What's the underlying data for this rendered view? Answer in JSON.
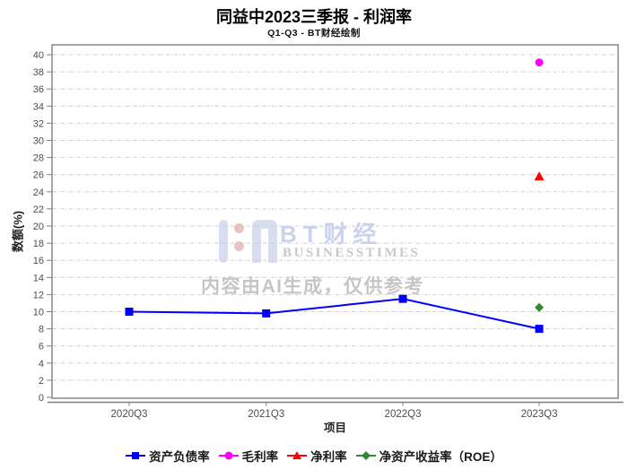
{
  "watermark": {
    "brand_cjk": "BT财经",
    "brand_latin": "BUSINESSTIMES",
    "disclaimer": "内容由AI生成，仅供参考",
    "brand_color": "#c9d3ec",
    "dot_color": "#e5b3b3",
    "latin_color": "#bfbfbf",
    "disclaimer_color": "#c6c6c6"
  },
  "chart_data": {
    "type": "line",
    "title": "同益中2023三季报 - 利润率",
    "subtitle": "Q1-Q3 - BT财经绘制",
    "xlabel": "项目",
    "ylabel": "数额(%)",
    "categories": [
      "2020Q3",
      "2021Q3",
      "2022Q3",
      "2023Q3"
    ],
    "series": [
      {
        "name": "资产负债率",
        "marker": "square",
        "color": "#0000ff",
        "show_line": true,
        "values": [
          10.0,
          9.8,
          11.5,
          8.0
        ]
      },
      {
        "name": "毛利率",
        "marker": "circle",
        "color": "#ff00ff",
        "show_line": false,
        "values": [
          null,
          null,
          null,
          39.1
        ]
      },
      {
        "name": "净利率",
        "marker": "triangle",
        "color": "#ff0000",
        "show_line": false,
        "values": [
          null,
          null,
          null,
          25.8
        ]
      },
      {
        "name": "净资产收益率（ROE）",
        "marker": "diamond",
        "color": "#2e8b2e",
        "show_line": false,
        "values": [
          null,
          null,
          null,
          10.5
        ]
      }
    ],
    "ylim": [
      0,
      41
    ],
    "ytick_step": 2,
    "grid": "horizontal-dashdot",
    "legend_position": "bottom",
    "frame_color": "#7f7f7f",
    "grid_color": "#cfcfcf",
    "tick_label_color": "#4d4d4d"
  }
}
